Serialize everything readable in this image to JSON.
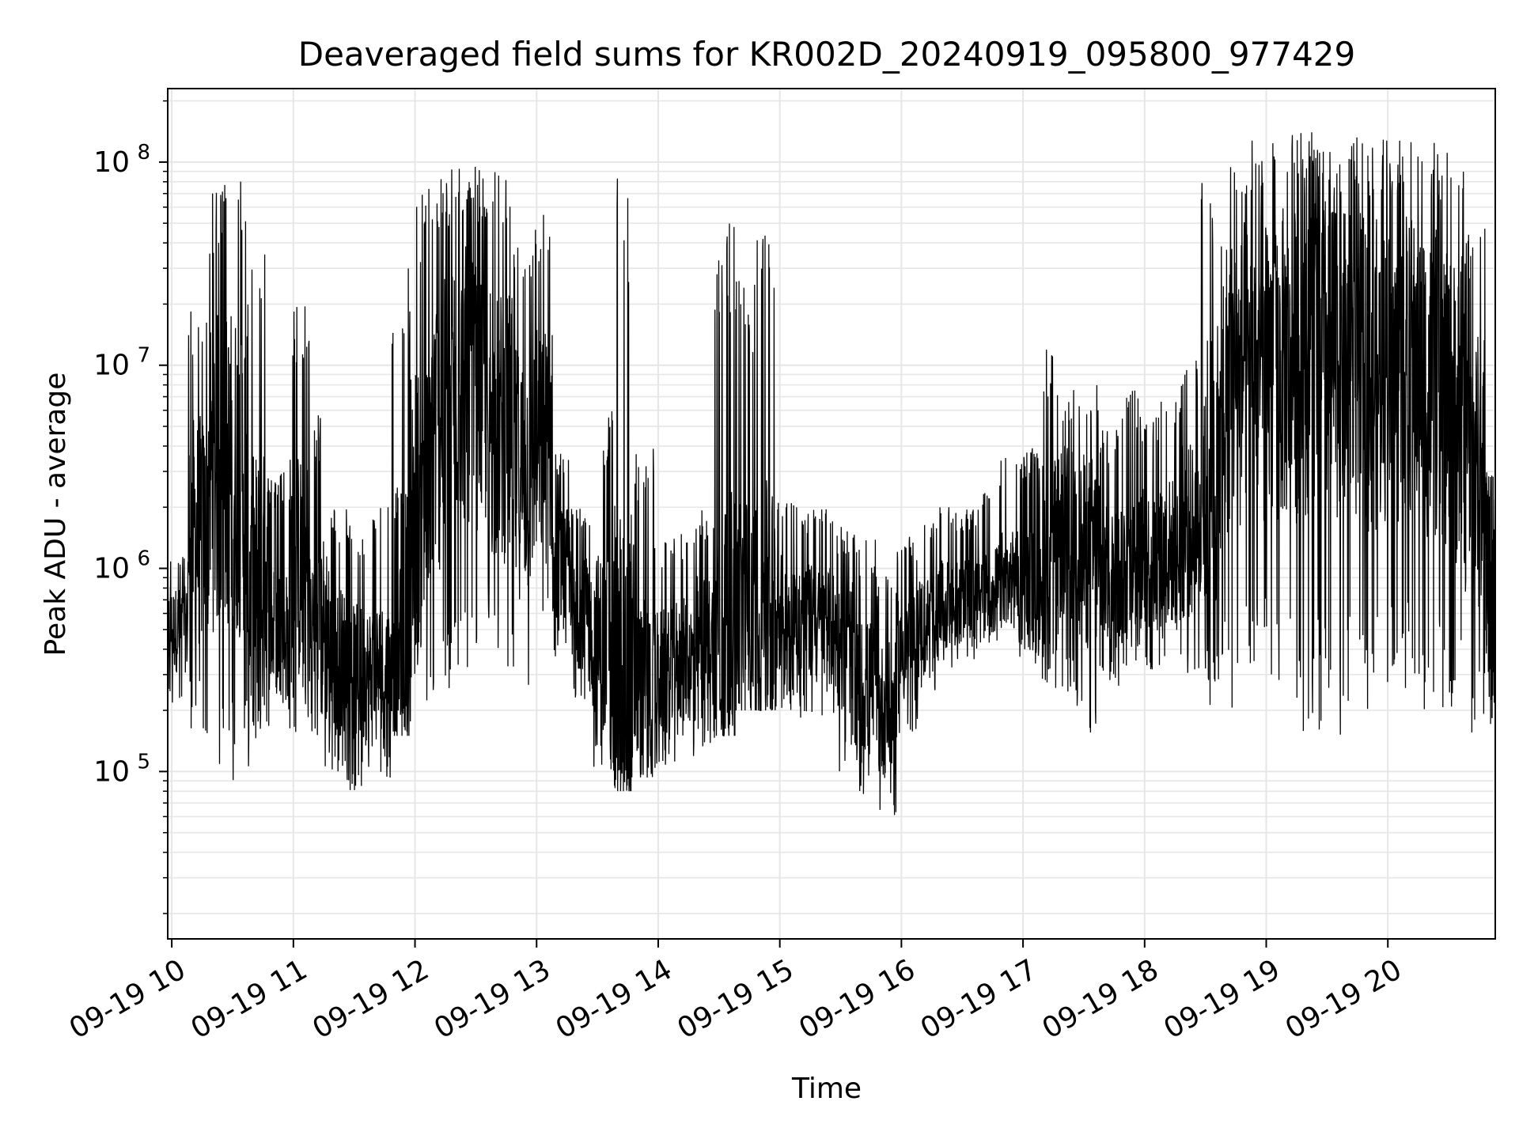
{
  "chart_data": {
    "type": "line",
    "title": "Deaveraged field sums for KR002D_20240919_095800_977429",
    "xlabel": "Time",
    "ylabel": "Peak ADU - average",
    "x_range": [
      "2024-09-19 09:58",
      "2024-09-19 20:53"
    ],
    "ylim": [
      15000,
      230000000
    ],
    "yscale": "log",
    "grid": true,
    "line_color": "#000000",
    "grid_color": "#e6e6e6",
    "x_ticks": [
      {
        "time": "2024-09-19 10:00",
        "label": "09-19 10"
      },
      {
        "time": "2024-09-19 11:00",
        "label": "09-19 11"
      },
      {
        "time": "2024-09-19 12:00",
        "label": "09-19 12"
      },
      {
        "time": "2024-09-19 13:00",
        "label": "09-19 13"
      },
      {
        "time": "2024-09-19 14:00",
        "label": "09-19 14"
      },
      {
        "time": "2024-09-19 15:00",
        "label": "09-19 15"
      },
      {
        "time": "2024-09-19 16:00",
        "label": "09-19 16"
      },
      {
        "time": "2024-09-19 17:00",
        "label": "09-19 17"
      },
      {
        "time": "2024-09-19 18:00",
        "label": "09-19 18"
      },
      {
        "time": "2024-09-19 19:00",
        "label": "09-19 19"
      },
      {
        "time": "2024-09-19 20:00",
        "label": "09-19 20"
      }
    ],
    "y_ticks": [
      {
        "value": 100000,
        "base": "10",
        "exp": "5"
      },
      {
        "value": 1000000,
        "base": "10",
        "exp": "6"
      },
      {
        "value": 10000000,
        "base": "10",
        "exp": "7"
      },
      {
        "value": 100000000,
        "base": "10",
        "exp": "8"
      }
    ],
    "series": [
      {
        "x": [
          "2024-09-19 09:58",
          "2024-09-19 10:08",
          "2024-09-19 10:18",
          "2024-09-19 10:28",
          "2024-09-19 10:38",
          "2024-09-19 10:48",
          "2024-09-19 10:58",
          "2024-09-19 11:08",
          "2024-09-19 11:18",
          "2024-09-19 11:28",
          "2024-09-19 11:38",
          "2024-09-19 11:48",
          "2024-09-19 11:58",
          "2024-09-19 12:08",
          "2024-09-19 12:18",
          "2024-09-19 12:28",
          "2024-09-19 12:38",
          "2024-09-19 12:48",
          "2024-09-19 12:58",
          "2024-09-19 13:08",
          "2024-09-19 13:18",
          "2024-09-19 13:28",
          "2024-09-19 13:38",
          "2024-09-19 13:48",
          "2024-09-19 13:58",
          "2024-09-19 14:08",
          "2024-09-19 14:18",
          "2024-09-19 14:28",
          "2024-09-19 14:38",
          "2024-09-19 14:48",
          "2024-09-19 14:58",
          "2024-09-19 15:08",
          "2024-09-19 15:18",
          "2024-09-19 15:28",
          "2024-09-19 15:38",
          "2024-09-19 15:48",
          "2024-09-19 15:58",
          "2024-09-19 16:08",
          "2024-09-19 16:18",
          "2024-09-19 16:28",
          "2024-09-19 16:38",
          "2024-09-19 16:48",
          "2024-09-19 16:58",
          "2024-09-19 17:08",
          "2024-09-19 17:18",
          "2024-09-19 17:28",
          "2024-09-19 17:38",
          "2024-09-19 17:48",
          "2024-09-19 17:58",
          "2024-09-19 18:08",
          "2024-09-19 18:18",
          "2024-09-19 18:28",
          "2024-09-19 18:38",
          "2024-09-19 18:48",
          "2024-09-19 18:58",
          "2024-09-19 19:08",
          "2024-09-19 19:18",
          "2024-09-19 19:28",
          "2024-09-19 19:38",
          "2024-09-19 19:48",
          "2024-09-19 19:58",
          "2024-09-19 20:08",
          "2024-09-19 20:18",
          "2024-09-19 20:28",
          "2024-09-19 20:38",
          "2024-09-19 20:48"
        ],
        "low": [
          200000,
          150000,
          100000,
          90000,
          120000,
          200000,
          150000,
          100000,
          90000,
          80000,
          90000,
          150000,
          180000,
          200000,
          300000,
          350000,
          300000,
          250000,
          400000,
          300000,
          200000,
          100000,
          80000,
          90000,
          100000,
          110000,
          130000,
          150000,
          200000,
          200000,
          200000,
          180000,
          150000,
          100000,
          70000,
          60000,
          150000,
          250000,
          300000,
          350000,
          400000,
          500000,
          300000,
          250000,
          200000,
          150000,
          250000,
          300000,
          300000,
          350000,
          300000,
          200000,
          200000,
          300000,
          250000,
          200000,
          150000,
          150000,
          200000,
          200000,
          250000,
          250000,
          200000,
          200000,
          150000,
          150000
        ],
        "high": [
          1200000,
          20000000,
          80000000,
          90000000,
          40000000,
          3000000,
          20000000,
          6000000,
          2000000,
          1500000,
          2000000,
          30000000,
          80000000,
          90000000,
          100000000,
          95000000,
          90000000,
          50000000,
          60000000,
          4000000,
          2000000,
          6000000,
          100000000,
          4000000,
          1500000,
          1500000,
          2000000,
          50000000,
          30000000,
          50000000,
          2500000,
          2000000,
          2000000,
          1600000,
          1400000,
          1000000,
          1500000,
          1700000,
          2000000,
          2000000,
          2500000,
          3500000,
          4000000,
          12000000,
          8000000,
          9000000,
          5000000,
          8000000,
          6000000,
          8000000,
          12000000,
          80000000,
          110000000,
          130000000,
          130000000,
          140000000,
          150000000,
          140000000,
          135000000,
          130000000,
          130000000,
          135000000,
          130000000,
          130000000,
          50000000,
          3000000
        ],
        "mid": [
          500000,
          1500000,
          3000000,
          3000000,
          800000,
          500000,
          1000000,
          500000,
          350000,
          300000,
          300000,
          600000,
          2000000,
          5000000,
          8000000,
          7000000,
          5000000,
          3000000,
          4000000,
          1000000,
          600000,
          400000,
          300000,
          250000,
          300000,
          350000,
          450000,
          500000,
          600000,
          600000,
          600000,
          550000,
          500000,
          400000,
          250000,
          200000,
          400000,
          550000,
          650000,
          700000,
          800000,
          900000,
          800000,
          1200000,
          1500000,
          1200000,
          900000,
          1000000,
          1100000,
          1200000,
          1500000,
          3000000,
          8000000,
          10000000,
          9000000,
          10000000,
          12000000,
          11000000,
          10000000,
          9000000,
          9000000,
          10000000,
          8000000,
          6000000,
          3000000,
          700000
        ]
      }
    ]
  }
}
